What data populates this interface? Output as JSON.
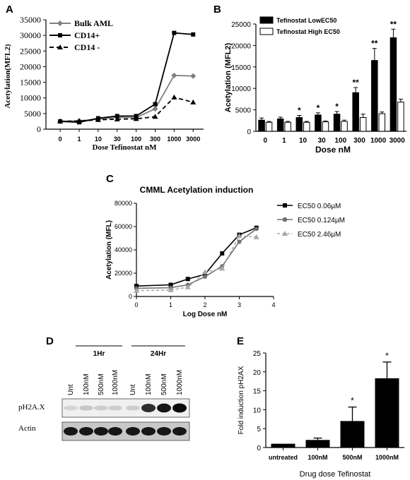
{
  "panel_letters": {
    "a": "A",
    "b": "B",
    "c": "C",
    "d": "D",
    "e": "E"
  },
  "chart_data": [
    {
      "panel": "A",
      "type": "line",
      "xlabel": "Dose Tefinostat  nM",
      "ylabel": "Acetylation(MFL2)",
      "categories": [
        "0",
        "1",
        "10",
        "30",
        "100",
        "300",
        "1000",
        "3000"
      ],
      "ylim": [
        0,
        35000
      ],
      "yticks": [
        "0",
        "5000",
        "10000",
        "15000",
        "20000",
        "25000",
        "30000",
        "35000"
      ],
      "legend_position": "top-left",
      "series": [
        {
          "name": "Bulk AML",
          "values": [
            2500,
            2700,
            3200,
            3800,
            3700,
            6500,
            17200,
            17000
          ],
          "color": "#808080",
          "marker": "diamond",
          "dash": "solid"
        },
        {
          "name": "CD14+",
          "values": [
            2500,
            2200,
            3500,
            4200,
            4200,
            8000,
            30800,
            30300
          ],
          "color": "#000000",
          "marker": "square",
          "dash": "solid"
        },
        {
          "name": "CD14 -",
          "values": [
            2500,
            2600,
            3000,
            3200,
            3300,
            4000,
            10200,
            8600
          ],
          "color": "#000000",
          "marker": "triangle",
          "dash": "dashed"
        }
      ]
    },
    {
      "panel": "B",
      "type": "bar",
      "xlabel": "Dose nM",
      "ylabel": "Acetylation (MFL2)",
      "categories": [
        "0",
        "1",
        "10",
        "30",
        "100",
        "300",
        "1000",
        "3000"
      ],
      "ylim": [
        0,
        25000
      ],
      "yticks": [
        "0",
        "5000",
        "10000",
        "15000",
        "20000",
        "25000"
      ],
      "legend_position": "top-left",
      "series": [
        {
          "name": "Tefinostat LowEC50",
          "values": [
            2600,
            2900,
            3200,
            3800,
            4000,
            9000,
            16500,
            21800
          ],
          "errors": [
            500,
            400,
            500,
            500,
            600,
            1200,
            2800,
            2000
          ],
          "color": "#000000"
        },
        {
          "name": "Tefinostat High EC50",
          "values": [
            2100,
            2100,
            2100,
            2200,
            2300,
            3200,
            4100,
            6800
          ],
          "errors": [
            200,
            200,
            200,
            200,
            300,
            800,
            400,
            700
          ],
          "color": "#ffffff"
        }
      ],
      "significance": [
        "",
        "",
        "*",
        "*",
        "*",
        "**",
        "**",
        "**"
      ]
    },
    {
      "panel": "C",
      "type": "line",
      "title": "CMML Acetylation induction",
      "xlabel": "Log Dose nM",
      "ylabel": "Acetylation (MFL)",
      "xlim": [
        0,
        4
      ],
      "xticks": [
        "0",
        "1",
        "2",
        "3",
        "4"
      ],
      "ylim": [
        0,
        80000
      ],
      "yticks": [
        "0",
        "20000",
        "40000",
        "60000",
        "80000"
      ],
      "legend_position": "right",
      "x": [
        0,
        1,
        1.5,
        2,
        2.5,
        3,
        3.5
      ],
      "series": [
        {
          "name": "EC50 0.06µM",
          "values": [
            9000,
            10000,
            15000,
            19000,
            37000,
            53000,
            59000
          ],
          "color": "#000000",
          "marker": "square",
          "dash": "solid"
        },
        {
          "name": "EC50 0.124µM",
          "values": [
            7000,
            7500,
            10000,
            17000,
            26000,
            47000,
            58000
          ],
          "color": "#707070",
          "marker": "circle",
          "dash": "solid"
        },
        {
          "name": "EC50 2.46µM",
          "values": [
            5000,
            5500,
            8000,
            21000,
            24000,
            52000,
            51000
          ],
          "color": "#a8a8a8",
          "marker": "triangle",
          "dash": "dashed"
        }
      ]
    },
    {
      "panel": "E",
      "type": "bar",
      "xlabel": "Drug dose Tefinostat",
      "ylabel": "Fold  induction pH2AX",
      "categories": [
        "untreated",
        "100nM",
        "500nM",
        "1000nM"
      ],
      "ylim": [
        0,
        25
      ],
      "yticks": [
        "0",
        "5",
        "10",
        "15",
        "20",
        "25"
      ],
      "values": [
        1,
        2,
        7,
        18.3
      ],
      "errors": [
        0,
        0.5,
        3.7,
        4.3
      ],
      "color": "#000000",
      "significance": [
        "",
        "",
        "*",
        "*"
      ]
    }
  ],
  "blot": {
    "group_labels": [
      "1Hr",
      "24Hr"
    ],
    "lane_labels": [
      "Unt",
      "100nM",
      "500nM",
      "1000nM",
      "Unt",
      "100nM",
      "500nM",
      "1000nM"
    ],
    "row_labels": [
      "pH2A.X",
      "Actin"
    ],
    "ph2ax_intensity": [
      0.12,
      0.18,
      0.15,
      0.15,
      0.15,
      0.85,
      0.95,
      1.0
    ],
    "actin_intensity": [
      0.95,
      0.95,
      0.95,
      0.95,
      0.95,
      0.95,
      0.95,
      0.95
    ]
  }
}
